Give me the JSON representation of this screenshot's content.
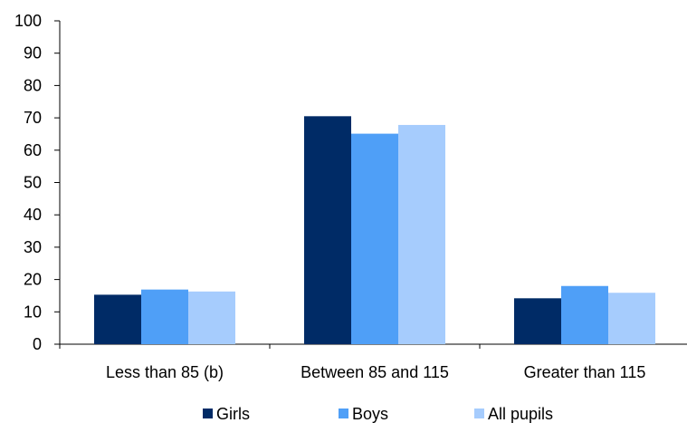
{
  "chart_data": {
    "type": "bar",
    "categories": [
      "Less than 85 (b)",
      "Between 85 and 115",
      "Greater than 115"
    ],
    "series": [
      {
        "name": "Girls",
        "color": "#002b66",
        "values": [
          15.3,
          70.5,
          14.2
        ]
      },
      {
        "name": "Boys",
        "color": "#4f9ff7",
        "values": [
          16.9,
          65.1,
          18.0
        ]
      },
      {
        "name": "All pupils",
        "color": "#a6ccfd",
        "values": [
          16.3,
          67.8,
          15.9
        ]
      }
    ],
    "ylim": [
      0,
      100
    ],
    "yticks": [
      0,
      10,
      20,
      30,
      40,
      50,
      60,
      70,
      80,
      90,
      100
    ],
    "grid": false,
    "legend_position": "bottom"
  }
}
